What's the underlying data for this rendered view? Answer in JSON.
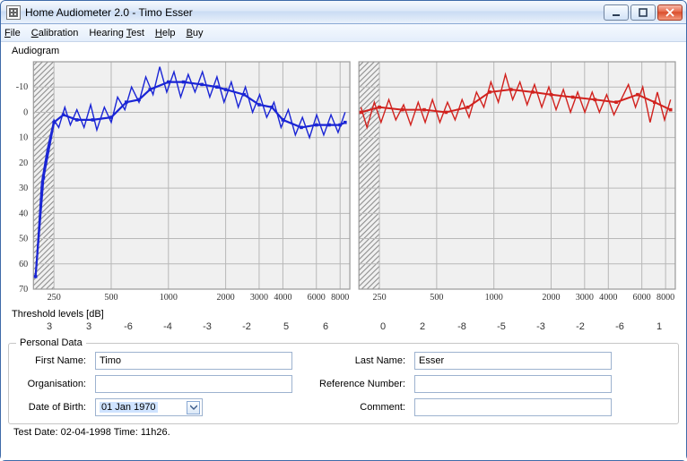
{
  "window": {
    "title": "Home Audiometer 2.0 - Timo Esser"
  },
  "menu": {
    "file": "File",
    "calibration": "Calibration",
    "hearing_test": "Hearing Test",
    "help": "Help",
    "buy": "Buy"
  },
  "chart": {
    "title": "Audiogram",
    "y_label_values": [
      -10,
      0,
      10,
      20,
      30,
      40,
      50,
      60,
      70
    ],
    "x_tick_labels": [
      "250",
      "500",
      "1000",
      "2000",
      "3000",
      "4000",
      "6000",
      "8000"
    ],
    "y_min": -20,
    "y_max": 70,
    "panel_bg": "#f0f0f0",
    "grid_color": "#b8b8b8",
    "hatched_x_max": 250,
    "left": {
      "color": "#1a25d5",
      "smooth": [
        [
          200,
          65
        ],
        [
          220,
          26
        ],
        [
          250,
          4
        ],
        [
          280,
          1
        ],
        [
          330,
          3
        ],
        [
          400,
          3
        ],
        [
          500,
          2
        ],
        [
          600,
          -4
        ],
        [
          700,
          -5
        ],
        [
          800,
          -9
        ],
        [
          1000,
          -12
        ],
        [
          1200,
          -12
        ],
        [
          1500,
          -11
        ],
        [
          1800,
          -10
        ],
        [
          2000,
          -9
        ],
        [
          2500,
          -7
        ],
        [
          3000,
          -3
        ],
        [
          3500,
          -2
        ],
        [
          4000,
          3
        ],
        [
          5000,
          6
        ],
        [
          6000,
          5
        ],
        [
          7000,
          5
        ],
        [
          8000,
          5
        ],
        [
          8500,
          4
        ]
      ],
      "jagged": [
        [
          200,
          65
        ],
        [
          215,
          28
        ],
        [
          230,
          15
        ],
        [
          250,
          3
        ],
        [
          265,
          6
        ],
        [
          285,
          -2
        ],
        [
          305,
          5
        ],
        [
          330,
          -1
        ],
        [
          360,
          6
        ],
        [
          390,
          -3
        ],
        [
          420,
          7
        ],
        [
          460,
          -2
        ],
        [
          500,
          4
        ],
        [
          540,
          -6
        ],
        [
          590,
          -1
        ],
        [
          640,
          -10
        ],
        [
          700,
          -4
        ],
        [
          760,
          -14
        ],
        [
          830,
          -7
        ],
        [
          900,
          -18
        ],
        [
          980,
          -8
        ],
        [
          1070,
          -16
        ],
        [
          1160,
          -6
        ],
        [
          1270,
          -15
        ],
        [
          1380,
          -8
        ],
        [
          1510,
          -16
        ],
        [
          1650,
          -6
        ],
        [
          1800,
          -14
        ],
        [
          1960,
          -4
        ],
        [
          2140,
          -12
        ],
        [
          2330,
          -2
        ],
        [
          2540,
          -10
        ],
        [
          2770,
          0
        ],
        [
          3020,
          -7
        ],
        [
          3290,
          2
        ],
        [
          3590,
          -4
        ],
        [
          3910,
          6
        ],
        [
          4270,
          -1
        ],
        [
          4650,
          9
        ],
        [
          5070,
          2
        ],
        [
          5520,
          10
        ],
        [
          6020,
          1
        ],
        [
          6560,
          9
        ],
        [
          7160,
          1
        ],
        [
          7800,
          8
        ],
        [
          8500,
          0
        ]
      ]
    },
    "right": {
      "color": "#d1221e",
      "smooth": [
        [
          200,
          0
        ],
        [
          250,
          -2
        ],
        [
          330,
          -1
        ],
        [
          430,
          -1
        ],
        [
          560,
          0
        ],
        [
          730,
          -2
        ],
        [
          950,
          -8
        ],
        [
          1230,
          -9
        ],
        [
          1600,
          -8
        ],
        [
          2000,
          -7
        ],
        [
          2600,
          -6
        ],
        [
          3400,
          -5
        ],
        [
          4400,
          -4
        ],
        [
          5700,
          -7
        ],
        [
          7000,
          -4
        ],
        [
          8500,
          -1
        ]
      ],
      "jagged": [
        [
          200,
          -2
        ],
        [
          215,
          6
        ],
        [
          235,
          -4
        ],
        [
          255,
          4
        ],
        [
          280,
          -5
        ],
        [
          305,
          3
        ],
        [
          335,
          -3
        ],
        [
          365,
          5
        ],
        [
          400,
          -4
        ],
        [
          435,
          4
        ],
        [
          475,
          -5
        ],
        [
          520,
          4
        ],
        [
          570,
          -4
        ],
        [
          625,
          3
        ],
        [
          680,
          -5
        ],
        [
          740,
          2
        ],
        [
          810,
          -8
        ],
        [
          885,
          -2
        ],
        [
          965,
          -12
        ],
        [
          1055,
          -4
        ],
        [
          1150,
          -15
        ],
        [
          1255,
          -5
        ],
        [
          1370,
          -12
        ],
        [
          1495,
          -3
        ],
        [
          1635,
          -11
        ],
        [
          1785,
          -2
        ],
        [
          1945,
          -10
        ],
        [
          2125,
          -1
        ],
        [
          2320,
          -9
        ],
        [
          2530,
          0
        ],
        [
          2760,
          -8
        ],
        [
          3010,
          0
        ],
        [
          3290,
          -8
        ],
        [
          3590,
          0
        ],
        [
          3920,
          -7
        ],
        [
          4280,
          1
        ],
        [
          4670,
          -5
        ],
        [
          5100,
          -11
        ],
        [
          5560,
          -2
        ],
        [
          6070,
          -10
        ],
        [
          6630,
          4
        ],
        [
          7240,
          -8
        ],
        [
          7900,
          3
        ],
        [
          8500,
          -5
        ]
      ]
    }
  },
  "threshold": {
    "label": "Threshold levels [dB]",
    "left_values": [
      "3",
      "3",
      "-6",
      "-4",
      "-3",
      "-2",
      "5",
      "6"
    ],
    "right_values": [
      "0",
      "2",
      "-8",
      "-5",
      "-3",
      "-2",
      "-6",
      "1"
    ]
  },
  "personal": {
    "legend": "Personal Data",
    "first_name_label": "First Name:",
    "last_name_label": "Last Name:",
    "organisation_label": "Organisation:",
    "reference_label": "Reference Number:",
    "dob_label": "Date of Birth:",
    "comment_label": "Comment:",
    "first_name_value": "Timo",
    "last_name_value": "Esser",
    "organisation_value": "",
    "reference_value": "",
    "comment_value": "",
    "dob_value": "01  Jan  1970"
  },
  "status": {
    "text": "Test Date: 02-04-1998 Time: 11h26."
  }
}
